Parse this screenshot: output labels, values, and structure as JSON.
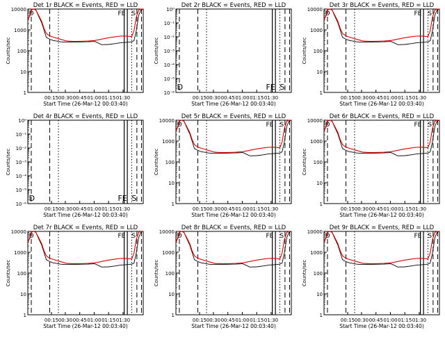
{
  "page": {
    "background": "#ffffff",
    "axis_color": "#000000",
    "events_color": "#000000",
    "lld_color": "#dd0000"
  },
  "chart_data": [
    {
      "type": "line",
      "panel": "det-1r",
      "title": "Det 1r BLACK = Events, RED = LLD",
      "xlabel": "Start Time (26-Mar-12 00:03:40)",
      "ylabel": "Counts/sec",
      "yscale": "log",
      "ylim": [
        1,
        10000
      ],
      "yticks": [
        "1",
        "10",
        "100",
        "1000",
        "10000"
      ],
      "xticks": [
        "00:15",
        "00:30",
        "00:45",
        "01:00",
        "01:15",
        "01:30"
      ],
      "markers": [
        "D",
        "FE",
        "S"
      ],
      "has_data": true,
      "x": [
        0,
        2,
        3,
        5,
        7,
        9,
        12,
        14,
        16,
        18,
        20,
        22,
        25,
        28,
        31,
        34,
        40,
        46,
        52,
        58,
        64,
        70,
        76,
        80,
        84,
        86,
        88,
        90,
        92,
        94,
        96,
        98,
        100
      ],
      "series": [
        {
          "name": "Events (BLACK)",
          "values": [
            3000,
            5000,
            9000,
            10000,
            9000,
            5000,
            2200,
            1000,
            440,
            380,
            340,
            310,
            290,
            270,
            260,
            260,
            260,
            265,
            270,
            280,
            195,
            200,
            220,
            240,
            250,
            255,
            260,
            270,
            300,
            900,
            5000,
            9000,
            10000
          ]
        },
        {
          "name": "LLD (RED)",
          "values": [
            3000,
            5500,
            10000,
            10000,
            9000,
            5500,
            2600,
            1200,
            680,
            560,
            490,
            450,
            400,
            360,
            320,
            290,
            280,
            285,
            290,
            310,
            360,
            420,
            470,
            500,
            510,
            500,
            490,
            470,
            900,
            4000,
            9000,
            10000,
            10000
          ]
        }
      ]
    },
    {
      "type": "line",
      "panel": "det-2r",
      "title": "Det 2r BLACK = Events, RED = LLD",
      "xlabel": "Start Time (26-Mar-12 00:03:40)",
      "ylabel": "Counts/sec",
      "yscale": "log",
      "ylim": [
        1e-06,
        1
      ],
      "yticks": [
        "10⁻⁶",
        "10⁻⁵",
        "10⁻⁴",
        "10⁻³",
        "10⁻²",
        "10⁻¹",
        "10⁰"
      ],
      "xticks": [
        "00:15",
        "00:30",
        "00:45",
        "01:00",
        "01:15",
        "01:30"
      ],
      "markers": [
        "D",
        "FE",
        "S"
      ],
      "has_data": false
    },
    {
      "type": "line",
      "panel": "det-3r",
      "title": "Det 3r BLACK = Events, RED = LLD",
      "xlabel": "Start Time (26-Mar-12 00:03:40)",
      "ylabel": "Counts/sec",
      "yscale": "log",
      "ylim": [
        1,
        10000
      ],
      "yticks": [
        "1",
        "10",
        "100",
        "1000",
        "10000"
      ],
      "xticks": [
        "00:15",
        "00:30",
        "00:45",
        "01:00",
        "01:15",
        "01:30"
      ],
      "markers": [
        "D",
        "FE",
        "S"
      ],
      "has_data": true,
      "x": [
        0,
        2,
        3,
        5,
        7,
        9,
        12,
        14,
        16,
        18,
        20,
        22,
        25,
        28,
        31,
        34,
        40,
        46,
        52,
        58,
        64,
        70,
        76,
        80,
        84,
        86,
        88,
        90,
        92,
        94,
        96,
        98,
        100
      ],
      "series": [
        {
          "name": "Events (BLACK)",
          "values": [
            3000,
            5000,
            9000,
            10000,
            9000,
            5000,
            2200,
            1000,
            440,
            380,
            340,
            310,
            290,
            270,
            260,
            260,
            260,
            265,
            270,
            280,
            195,
            200,
            220,
            240,
            250,
            255,
            260,
            270,
            300,
            900,
            5000,
            9000,
            10000
          ]
        },
        {
          "name": "LLD (RED)",
          "values": [
            3000,
            5500,
            10000,
            10000,
            9000,
            5500,
            2600,
            1200,
            680,
            560,
            490,
            450,
            400,
            360,
            320,
            290,
            280,
            285,
            290,
            310,
            360,
            420,
            470,
            500,
            510,
            500,
            490,
            470,
            900,
            4000,
            9000,
            10000,
            10000
          ]
        }
      ]
    },
    {
      "type": "line",
      "panel": "det-4r",
      "title": "Det 4r BLACK = Events, RED = LLD",
      "xlabel": "Start Time (26-Mar-12 00:03:40)",
      "ylabel": "Counts/sec",
      "yscale": "log",
      "ylim": [
        1e-06,
        1
      ],
      "yticks": [
        "10⁻⁶",
        "10⁻⁵",
        "10⁻⁴",
        "10⁻³",
        "10⁻²",
        "10⁻¹",
        "10⁰"
      ],
      "xticks": [
        "00:15",
        "00:30",
        "00:45",
        "01:00",
        "01:15",
        "01:30"
      ],
      "markers": [
        "D",
        "FE",
        "S"
      ],
      "has_data": false
    },
    {
      "type": "line",
      "panel": "det-5r",
      "title": "Det 5r BLACK = Events, RED = LLD",
      "xlabel": "Start Time (26-Mar-12 00:03:40)",
      "ylabel": "Counts/sec",
      "yscale": "log",
      "ylim": [
        1,
        10000
      ],
      "yticks": [
        "1",
        "10",
        "100",
        "1000",
        "10000"
      ],
      "xticks": [
        "00:15",
        "00:30",
        "00:45",
        "01:00",
        "01:15",
        "01:30"
      ],
      "markers": [
        "D",
        "FE",
        "S"
      ],
      "has_data": true,
      "x": [
        0,
        2,
        3,
        5,
        7,
        9,
        12,
        14,
        16,
        18,
        20,
        22,
        25,
        28,
        31,
        34,
        40,
        46,
        52,
        58,
        64,
        70,
        76,
        80,
        84,
        86,
        88,
        90,
        92,
        94,
        96,
        98,
        100
      ],
      "series": [
        {
          "name": "Events (BLACK)",
          "values": [
            3000,
            5000,
            9000,
            10000,
            9000,
            5000,
            2200,
            1000,
            440,
            380,
            340,
            310,
            290,
            270,
            260,
            260,
            260,
            265,
            270,
            280,
            195,
            200,
            220,
            240,
            250,
            255,
            260,
            270,
            300,
            900,
            5000,
            9000,
            10000
          ]
        },
        {
          "name": "LLD (RED)",
          "values": [
            3000,
            5500,
            10000,
            10000,
            9000,
            5500,
            2600,
            1200,
            680,
            560,
            490,
            450,
            400,
            360,
            320,
            290,
            280,
            285,
            290,
            310,
            360,
            420,
            470,
            500,
            510,
            500,
            490,
            470,
            900,
            4000,
            9000,
            10000,
            10000
          ]
        }
      ]
    },
    {
      "type": "line",
      "panel": "det-6r",
      "title": "Det 6r BLACK = Events, RED = LLD",
      "xlabel": "Start Time (26-Mar-12 00:03:40)",
      "ylabel": "Counts/sec",
      "yscale": "log",
      "ylim": [
        1,
        10000
      ],
      "yticks": [
        "1",
        "10",
        "100",
        "1000",
        "10000"
      ],
      "xticks": [
        "00:15",
        "00:30",
        "00:45",
        "01:00",
        "01:15",
        "01:30"
      ],
      "markers": [
        "D",
        "FE",
        "S"
      ],
      "has_data": true,
      "x": [
        0,
        2,
        3,
        5,
        7,
        9,
        12,
        14,
        16,
        18,
        20,
        22,
        25,
        28,
        31,
        34,
        40,
        46,
        52,
        58,
        64,
        70,
        76,
        80,
        84,
        86,
        88,
        90,
        92,
        94,
        96,
        98,
        100
      ],
      "series": [
        {
          "name": "Events (BLACK)",
          "values": [
            3000,
            5000,
            9000,
            10000,
            9000,
            5000,
            2200,
            1000,
            440,
            380,
            340,
            310,
            290,
            270,
            260,
            260,
            260,
            265,
            270,
            280,
            195,
            200,
            220,
            240,
            250,
            255,
            260,
            270,
            300,
            900,
            5000,
            9000,
            10000
          ]
        },
        {
          "name": "LLD (RED)",
          "values": [
            3000,
            5500,
            10000,
            10000,
            9000,
            5500,
            2600,
            1200,
            680,
            560,
            490,
            450,
            400,
            360,
            320,
            290,
            280,
            285,
            290,
            310,
            360,
            420,
            470,
            500,
            510,
            500,
            490,
            470,
            900,
            4000,
            9000,
            10000,
            10000
          ]
        }
      ]
    },
    {
      "type": "line",
      "panel": "det-7r",
      "title": "Det 7r BLACK = Events, RED = LLD",
      "xlabel": "Start Time (26-Mar-12 00:03:40)",
      "ylabel": "Counts/sec",
      "yscale": "log",
      "ylim": [
        1,
        10000
      ],
      "yticks": [
        "1",
        "10",
        "100",
        "1000",
        "10000"
      ],
      "xticks": [
        "00:15",
        "00:30",
        "00:45",
        "01:00",
        "01:15",
        "01:30"
      ],
      "markers": [
        "D",
        "FE",
        "S"
      ],
      "has_data": true,
      "x": [
        0,
        2,
        3,
        5,
        7,
        9,
        12,
        14,
        16,
        18,
        20,
        22,
        25,
        28,
        31,
        34,
        40,
        46,
        52,
        58,
        64,
        70,
        76,
        80,
        84,
        86,
        88,
        90,
        92,
        94,
        96,
        98,
        100
      ],
      "series": [
        {
          "name": "Events (BLACK)",
          "values": [
            3000,
            5000,
            9000,
            10000,
            9000,
            5000,
            2200,
            1000,
            440,
            380,
            340,
            310,
            290,
            270,
            260,
            260,
            260,
            265,
            270,
            280,
            195,
            200,
            220,
            240,
            250,
            255,
            260,
            270,
            300,
            900,
            5000,
            9000,
            10000
          ]
        },
        {
          "name": "LLD (RED)",
          "values": [
            3000,
            5500,
            10000,
            10000,
            9000,
            5500,
            2600,
            1200,
            680,
            560,
            490,
            450,
            400,
            360,
            320,
            290,
            280,
            285,
            290,
            310,
            360,
            420,
            470,
            500,
            510,
            500,
            490,
            470,
            900,
            4000,
            9000,
            10000,
            10000
          ]
        }
      ]
    },
    {
      "type": "line",
      "panel": "det-8r",
      "title": "Det 8r BLACK = Events, RED = LLD",
      "xlabel": "Start Time (26-Mar-12 00:03:40)",
      "ylabel": "Counts/sec",
      "yscale": "log",
      "ylim": [
        1,
        10000
      ],
      "yticks": [
        "1",
        "10",
        "100",
        "1000",
        "10000"
      ],
      "xticks": [
        "00:15",
        "00:30",
        "00:45",
        "01:00",
        "01:15",
        "01:30"
      ],
      "markers": [
        "D",
        "FE",
        "S"
      ],
      "has_data": true,
      "x": [
        0,
        2,
        3,
        5,
        7,
        9,
        12,
        14,
        16,
        18,
        20,
        22,
        25,
        28,
        31,
        34,
        40,
        46,
        52,
        58,
        64,
        70,
        76,
        80,
        84,
        86,
        88,
        90,
        92,
        94,
        96,
        98,
        100
      ],
      "series": [
        {
          "name": "Events (BLACK)",
          "values": [
            3000,
            5000,
            9000,
            10000,
            9000,
            5000,
            2200,
            1000,
            440,
            380,
            340,
            310,
            290,
            270,
            260,
            260,
            260,
            265,
            270,
            280,
            195,
            200,
            220,
            240,
            250,
            255,
            260,
            270,
            300,
            900,
            5000,
            9000,
            10000
          ]
        },
        {
          "name": "LLD (RED)",
          "values": [
            3000,
            5500,
            10000,
            10000,
            9000,
            5500,
            2600,
            1200,
            680,
            560,
            490,
            450,
            400,
            360,
            320,
            290,
            280,
            285,
            290,
            310,
            360,
            420,
            470,
            500,
            510,
            500,
            490,
            470,
            900,
            4000,
            9000,
            10000,
            10000
          ]
        }
      ]
    },
    {
      "type": "line",
      "panel": "det-9r",
      "title": "Det 9r BLACK = Events, RED = LLD",
      "xlabel": "Start Time (26-Mar-12 00:03:40)",
      "ylabel": "Counts/sec",
      "yscale": "log",
      "ylim": [
        1,
        10000
      ],
      "yticks": [
        "1",
        "10",
        "100",
        "1000",
        "10000"
      ],
      "xticks": [
        "00:15",
        "00:30",
        "00:45",
        "01:00",
        "01:15",
        "01:30"
      ],
      "markers": [
        "D",
        "FE",
        "S"
      ],
      "has_data": true,
      "x": [
        0,
        2,
        3,
        5,
        7,
        9,
        12,
        14,
        16,
        18,
        20,
        22,
        25,
        28,
        31,
        34,
        40,
        46,
        52,
        58,
        64,
        70,
        76,
        80,
        84,
        86,
        88,
        90,
        92,
        94,
        96,
        98,
        100
      ],
      "series": [
        {
          "name": "Events (BLACK)",
          "values": [
            3000,
            5000,
            9000,
            10000,
            9000,
            5000,
            2200,
            1000,
            440,
            380,
            340,
            310,
            290,
            270,
            260,
            260,
            260,
            265,
            270,
            280,
            195,
            200,
            220,
            240,
            250,
            255,
            260,
            270,
            300,
            900,
            5000,
            9000,
            10000
          ]
        },
        {
          "name": "LLD (RED)",
          "values": [
            3000,
            5500,
            10000,
            10000,
            9000,
            5500,
            2600,
            1200,
            680,
            560,
            490,
            450,
            400,
            360,
            320,
            290,
            280,
            285,
            290,
            310,
            360,
            420,
            470,
            500,
            510,
            500,
            490,
            470,
            900,
            4000,
            9000,
            10000,
            10000
          ]
        }
      ]
    }
  ]
}
